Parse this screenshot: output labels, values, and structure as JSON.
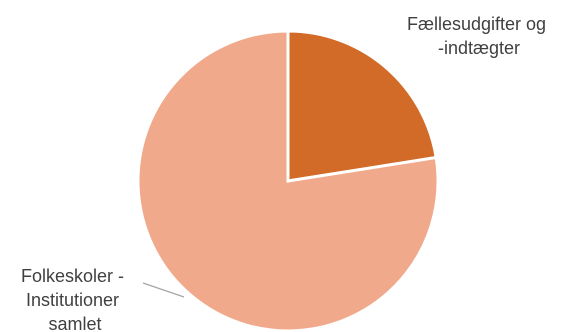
{
  "chart_data": {
    "type": "pie",
    "slices": [
      {
        "label_lines": [
          "Fællesudgifter og",
          "-indtægter"
        ],
        "value": 22.5,
        "color": "#d36b28"
      },
      {
        "label_lines": [
          "Folkeskoler -",
          "Institutioner",
          "samlet"
        ],
        "value": 77.5,
        "color": "#f0a98a"
      }
    ],
    "title": "",
    "legend": "none",
    "slice_border_color": "#ffffff"
  }
}
